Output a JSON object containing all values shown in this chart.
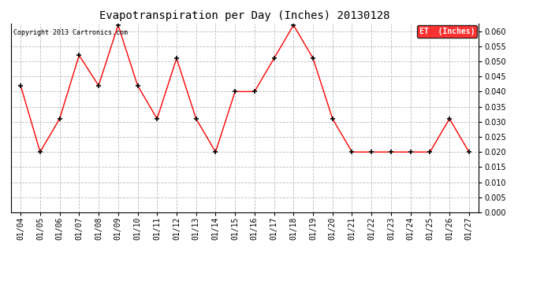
{
  "title": "Evapotranspiration per Day (Inches) 20130128",
  "copyright_text": "Copyright 2013 Cartronics.com",
  "legend_label": "ET  (Inches)",
  "dates": [
    "01/04",
    "01/05",
    "01/06",
    "01/07",
    "01/08",
    "01/09",
    "01/10",
    "01/11",
    "01/12",
    "01/13",
    "01/14",
    "01/15",
    "01/16",
    "01/17",
    "01/18",
    "01/19",
    "01/20",
    "01/21",
    "01/22",
    "01/23",
    "01/24",
    "01/25",
    "01/26",
    "01/27"
  ],
  "values": [
    0.042,
    0.02,
    0.031,
    0.052,
    0.042,
    0.062,
    0.042,
    0.031,
    0.051,
    0.031,
    0.02,
    0.04,
    0.04,
    0.051,
    0.062,
    0.051,
    0.031,
    0.02,
    0.02,
    0.02,
    0.02,
    0.02,
    0.031,
    0.02
  ],
  "ylim": [
    0.0,
    0.0625
  ],
  "yticks": [
    0.0,
    0.005,
    0.01,
    0.015,
    0.02,
    0.025,
    0.03,
    0.035,
    0.04,
    0.045,
    0.05,
    0.055,
    0.06
  ],
  "line_color": "red",
  "marker_color": "black",
  "legend_bg_color": "red",
  "legend_text_color": "white",
  "background_color": "white",
  "grid_color": "#bbbbbb"
}
